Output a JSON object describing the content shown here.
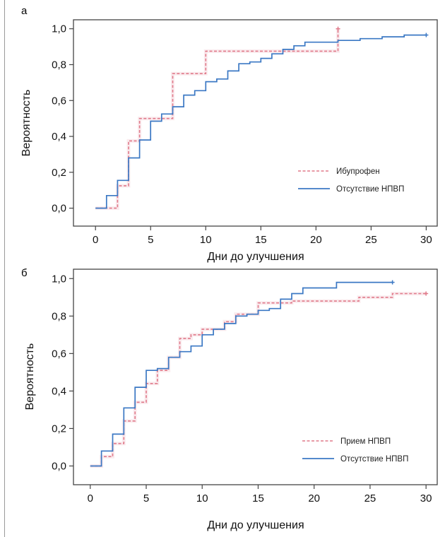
{
  "chart_data": [
    {
      "type": "line",
      "step": true,
      "panel_label": "а",
      "xlabel": "Дни до улучшения",
      "ylabel": "Вероятность",
      "xlim": [
        -2,
        31
      ],
      "ylim": [
        -0.1,
        1.05
      ],
      "xticks": [
        0,
        5,
        10,
        15,
        20,
        25,
        30
      ],
      "yticks": [
        0,
        0.2,
        0.4,
        0.6,
        0.8,
        1.0
      ],
      "xtick_labels": [
        "0",
        "5",
        "10",
        "15",
        "20",
        "25",
        "30"
      ],
      "ytick_labels": [
        "0,0",
        "0,2",
        "0,4",
        "0,6",
        "0,8",
        "1,0"
      ],
      "grid": false,
      "legend_position": "bottom-right",
      "series": [
        {
          "name": "Ибупрофен",
          "color": "#e07a8a",
          "style": "dashed",
          "points": [
            [
              0,
              0
            ],
            [
              2,
              0
            ],
            [
              2,
              0.125
            ],
            [
              3,
              0.125
            ],
            [
              3,
              0.375
            ],
            [
              4,
              0.375
            ],
            [
              4,
              0.5
            ],
            [
              6,
              0.5
            ],
            [
              6,
              0.5
            ],
            [
              7,
              0.5
            ],
            [
              7,
              0.75
            ],
            [
              10,
              0.75
            ],
            [
              10,
              0.875
            ],
            [
              22,
              0.875
            ],
            [
              22,
              1.0
            ]
          ]
        },
        {
          "name": "Отсутствие НПВП",
          "color": "#3b78c4",
          "style": "solid",
          "points": [
            [
              0,
              0
            ],
            [
              1,
              0
            ],
            [
              1,
              0.07
            ],
            [
              2,
              0.07
            ],
            [
              2,
              0.155
            ],
            [
              3,
              0.155
            ],
            [
              3,
              0.28
            ],
            [
              4,
              0.28
            ],
            [
              4,
              0.38
            ],
            [
              5,
              0.38
            ],
            [
              5,
              0.485
            ],
            [
              6,
              0.485
            ],
            [
              6,
              0.525
            ],
            [
              7,
              0.525
            ],
            [
              7,
              0.565
            ],
            [
              8,
              0.565
            ],
            [
              8,
              0.63
            ],
            [
              9,
              0.63
            ],
            [
              9,
              0.655
            ],
            [
              10,
              0.655
            ],
            [
              10,
              0.705
            ],
            [
              11,
              0.705
            ],
            [
              11,
              0.72
            ],
            [
              12,
              0.72
            ],
            [
              12,
              0.765
            ],
            [
              13,
              0.765
            ],
            [
              13,
              0.805
            ],
            [
              14,
              0.805
            ],
            [
              14,
              0.815
            ],
            [
              15,
              0.815
            ],
            [
              15,
              0.835
            ],
            [
              16,
              0.835
            ],
            [
              16,
              0.86
            ],
            [
              17,
              0.86
            ],
            [
              17,
              0.885
            ],
            [
              18,
              0.885
            ],
            [
              18,
              0.905
            ],
            [
              19,
              0.905
            ],
            [
              19,
              0.925
            ],
            [
              22,
              0.925
            ],
            [
              22,
              0.935
            ],
            [
              24,
              0.935
            ],
            [
              24,
              0.945
            ],
            [
              26,
              0.945
            ],
            [
              26,
              0.955
            ],
            [
              28,
              0.955
            ],
            [
              28,
              0.965
            ],
            [
              30,
              0.965
            ]
          ]
        }
      ]
    },
    {
      "type": "line",
      "step": true,
      "panel_label": "б",
      "xlabel": "Дни до улучшения",
      "ylabel": "Вероятность",
      "xlim": [
        -1.5,
        31
      ],
      "ylim": [
        -0.1,
        1.05
      ],
      "xticks": [
        0,
        5,
        10,
        15,
        20,
        25,
        30
      ],
      "yticks": [
        0,
        0.2,
        0.4,
        0.6,
        0.8,
        1.0
      ],
      "xtick_labels": [
        "0",
        "5",
        "10",
        "15",
        "20",
        "25",
        "30"
      ],
      "ytick_labels": [
        "0,0",
        "0,2",
        "0,4",
        "0,6",
        "0,8",
        "1,0"
      ],
      "grid": false,
      "legend_position": "bottom-right",
      "series": [
        {
          "name": "Прием НПВП",
          "color": "#e07a8a",
          "style": "dashed",
          "points": [
            [
              0,
              0
            ],
            [
              1,
              0
            ],
            [
              1,
              0.05
            ],
            [
              2,
              0.05
            ],
            [
              2,
              0.12
            ],
            [
              3,
              0.12
            ],
            [
              3,
              0.24
            ],
            [
              4,
              0.24
            ],
            [
              4,
              0.34
            ],
            [
              5,
              0.34
            ],
            [
              5,
              0.44
            ],
            [
              6,
              0.44
            ],
            [
              6,
              0.51
            ],
            [
              7,
              0.51
            ],
            [
              7,
              0.58
            ],
            [
              8,
              0.58
            ],
            [
              8,
              0.68
            ],
            [
              9,
              0.68
            ],
            [
              9,
              0.7
            ],
            [
              10,
              0.7
            ],
            [
              10,
              0.73
            ],
            [
              12,
              0.73
            ],
            [
              12,
              0.77
            ],
            [
              13,
              0.77
            ],
            [
              13,
              0.81
            ],
            [
              15,
              0.81
            ],
            [
              15,
              0.87
            ],
            [
              18,
              0.87
            ],
            [
              18,
              0.88
            ],
            [
              24,
              0.88
            ],
            [
              24,
              0.9
            ],
            [
              27,
              0.9
            ],
            [
              27,
              0.92
            ],
            [
              30,
              0.92
            ]
          ]
        },
        {
          "name": "Отсутствие НПВП",
          "color": "#3b78c4",
          "style": "solid",
          "points": [
            [
              0,
              0
            ],
            [
              1,
              0
            ],
            [
              1,
              0.08
            ],
            [
              2,
              0.08
            ],
            [
              2,
              0.17
            ],
            [
              3,
              0.17
            ],
            [
              3,
              0.31
            ],
            [
              4,
              0.31
            ],
            [
              4,
              0.42
            ],
            [
              5,
              0.42
            ],
            [
              5,
              0.51
            ],
            [
              6,
              0.51
            ],
            [
              6,
              0.52
            ],
            [
              7,
              0.52
            ],
            [
              7,
              0.58
            ],
            [
              8,
              0.58
            ],
            [
              8,
              0.61
            ],
            [
              9,
              0.61
            ],
            [
              9,
              0.64
            ],
            [
              10,
              0.64
            ],
            [
              10,
              0.7
            ],
            [
              11,
              0.7
            ],
            [
              11,
              0.73
            ],
            [
              12,
              0.73
            ],
            [
              12,
              0.76
            ],
            [
              13,
              0.76
            ],
            [
              13,
              0.8
            ],
            [
              14,
              0.8
            ],
            [
              14,
              0.81
            ],
            [
              15,
              0.81
            ],
            [
              15,
              0.83
            ],
            [
              16,
              0.83
            ],
            [
              16,
              0.84
            ],
            [
              17,
              0.84
            ],
            [
              17,
              0.89
            ],
            [
              18,
              0.89
            ],
            [
              18,
              0.92
            ],
            [
              19,
              0.92
            ],
            [
              19,
              0.95
            ],
            [
              22,
              0.95
            ],
            [
              22,
              0.98
            ],
            [
              27,
              0.98
            ]
          ]
        }
      ]
    }
  ]
}
